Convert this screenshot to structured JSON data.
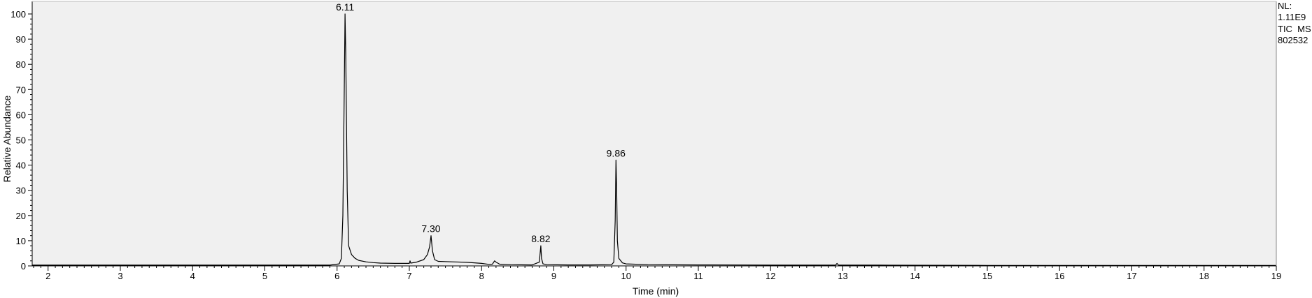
{
  "chart_data": {
    "type": "line",
    "title": "",
    "xlabel": "Time (min)",
    "ylabel": "Relative Abundance",
    "xlim": [
      1.78,
      19.0
    ],
    "ylim": [
      0,
      100
    ],
    "x_ticks": [
      2,
      3,
      4,
      5,
      6,
      7,
      8,
      9,
      10,
      11,
      12,
      13,
      14,
      15,
      16,
      17,
      18,
      19
    ],
    "y_ticks": [
      0,
      10,
      20,
      30,
      40,
      50,
      60,
      70,
      80,
      90,
      100
    ],
    "grid": false,
    "info": [
      "NL:",
      "1.11E9",
      "TIC  MS",
      "802532"
    ],
    "peak_labels": [
      {
        "x": 6.11,
        "y": 100,
        "text": "6.11"
      },
      {
        "x": 7.3,
        "y": 12,
        "text": "7.30"
      },
      {
        "x": 8.82,
        "y": 8,
        "text": "8.82"
      },
      {
        "x": 9.86,
        "y": 42,
        "text": "9.86"
      }
    ],
    "series": [
      {
        "color": "#000000",
        "x": [
          1.78,
          5.9,
          6.03,
          6.06,
          6.08,
          6.1,
          6.11,
          6.12,
          6.14,
          6.16,
          6.2,
          6.25,
          6.3,
          6.4,
          6.5,
          6.6,
          6.8,
          7.0,
          7.01,
          7.02,
          7.1,
          7.2,
          7.25,
          7.28,
          7.3,
          7.32,
          7.35,
          7.4,
          7.6,
          7.8,
          8.0,
          8.1,
          8.15,
          8.18,
          8.2,
          8.25,
          8.4,
          8.7,
          8.8,
          8.81,
          8.82,
          8.83,
          8.85,
          8.9,
          9.2,
          9.5,
          9.8,
          9.83,
          9.85,
          9.86,
          9.87,
          9.88,
          9.9,
          9.95,
          10.0,
          10.3,
          11.0,
          12.0,
          12.9,
          12.92,
          12.94,
          13.5,
          15.0,
          17.0,
          19.0
        ],
        "y": [
          0.3,
          0.3,
          0.8,
          3,
          20,
          70,
          100,
          85,
          30,
          8,
          4.5,
          3,
          2.2,
          1.6,
          1.3,
          1.1,
          1.0,
          1.0,
          2.0,
          1.1,
          1.5,
          2.5,
          4.5,
          7.5,
          12,
          6,
          2.5,
          1.8,
          1.6,
          1.4,
          1.0,
          0.6,
          0.7,
          2.0,
          1.5,
          0.7,
          0.5,
          0.4,
          1.5,
          5,
          8,
          3,
          0.8,
          0.5,
          0.4,
          0.4,
          0.5,
          1.5,
          18,
          42,
          30,
          10,
          3,
          1.2,
          0.8,
          0.5,
          0.4,
          0.3,
          0.3,
          1.0,
          0.3,
          0.3,
          0.2,
          0.2,
          0.2
        ]
      }
    ]
  }
}
